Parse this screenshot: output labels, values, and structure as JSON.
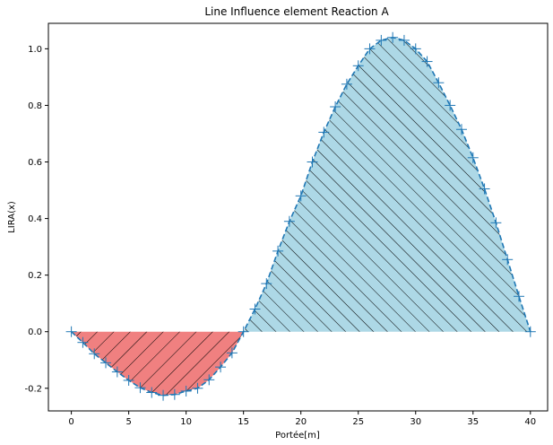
{
  "chart_data": {
    "type": "area",
    "title": "Line Influence element Reaction A",
    "xlabel": "Portée[m]",
    "ylabel": "LIRA(x)",
    "xlim": [
      -2,
      41.5
    ],
    "ylim": [
      -0.28,
      1.09
    ],
    "xticks": [
      0,
      5,
      10,
      15,
      20,
      25,
      30,
      35,
      40
    ],
    "yticks": [
      -0.2,
      0.0,
      0.2,
      0.4,
      0.6,
      0.8,
      1.0
    ],
    "grid": false,
    "colors": {
      "line": "#1f77b4",
      "negative_fill": "#f08080",
      "positive_fill": "#add8e6",
      "hatch": "#000000"
    },
    "series": [
      {
        "x": [
          0,
          1,
          2,
          3,
          4,
          5,
          6,
          7,
          8,
          9,
          10,
          11,
          12,
          13,
          14,
          15,
          16,
          17,
          18,
          19,
          20,
          21,
          22,
          23,
          24,
          25,
          26,
          27,
          28,
          29,
          30,
          31,
          32,
          33,
          34,
          35,
          36,
          37,
          38,
          39,
          40
        ],
        "values": [
          0.0,
          -0.038,
          -0.078,
          -0.11,
          -0.142,
          -0.172,
          -0.198,
          -0.215,
          -0.225,
          -0.222,
          -0.21,
          -0.2,
          -0.17,
          -0.125,
          -0.075,
          0.0,
          0.08,
          0.17,
          0.285,
          0.39,
          0.48,
          0.6,
          0.705,
          0.795,
          0.875,
          0.94,
          1.0,
          1.03,
          1.04,
          1.03,
          1.0,
          0.955,
          0.88,
          0.8,
          0.715,
          0.615,
          0.505,
          0.385,
          0.255,
          0.125,
          0.0
        ]
      }
    ]
  }
}
